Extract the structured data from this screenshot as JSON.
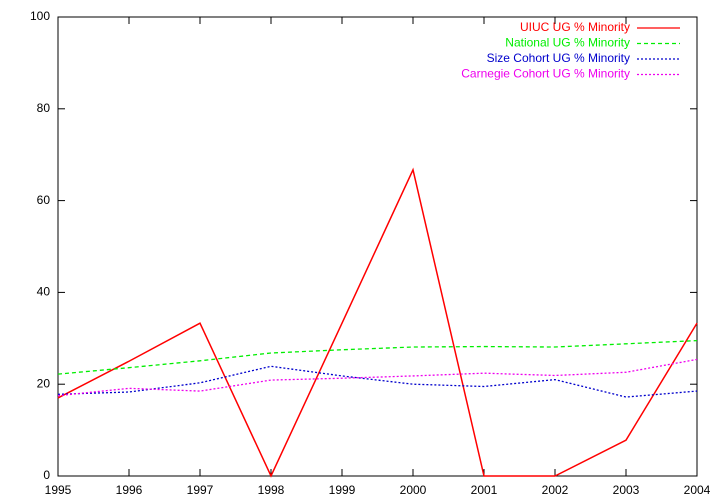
{
  "chart_data": {
    "type": "line",
    "x": [
      1995,
      1996,
      1997,
      1998,
      1999,
      2000,
      2001,
      2002,
      2003,
      2004
    ],
    "series": [
      {
        "name": "UIUC UG % Minority",
        "color": "#ff0000",
        "style": "solid",
        "values": [
          17,
          25,
          33.3,
          0,
          33.3,
          66.7,
          0,
          0,
          7.8,
          33.3
        ]
      },
      {
        "name": "National UG % Minority",
        "color": "#00ee00",
        "style": "dashed",
        "values": [
          22.2,
          23.6,
          25.1,
          26.8,
          27.5,
          28.1,
          28.2,
          28.1,
          28.8,
          29.5
        ]
      },
      {
        "name": "Size Cohort UG % Minority",
        "color": "#0000cc",
        "style": "dotted",
        "values": [
          17.8,
          18.3,
          20.3,
          23.9,
          21.8,
          20.0,
          19.5,
          21.0,
          17.2,
          18.5
        ]
      },
      {
        "name": "Carnegie Cohort UG % Minority",
        "color": "#ee00ee",
        "style": "dotted",
        "values": [
          17.5,
          19.1,
          18.5,
          20.9,
          21.3,
          21.8,
          22.4,
          21.9,
          22.6,
          25.4
        ]
      }
    ],
    "xlim": [
      1995,
      2004
    ],
    "xticks": [
      1995,
      1996,
      1997,
      1998,
      1999,
      2000,
      2001,
      2002,
      2003,
      2004
    ],
    "ylim": [
      0,
      100
    ],
    "yticks": [
      0,
      20,
      40,
      60,
      80,
      100
    ],
    "legend": "top-right"
  }
}
